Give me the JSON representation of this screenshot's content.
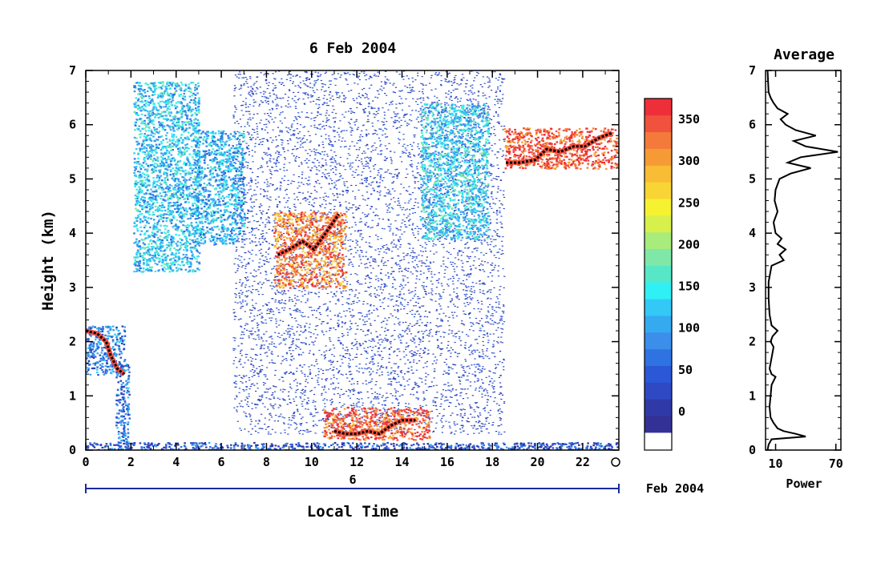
{
  "chart_data": [
    {
      "type": "heatmap",
      "title": "6 Feb 2004",
      "xlabel": "Local Time",
      "ylabel": "Height (km)",
      "xlim": [
        0,
        23.6
      ],
      "ylim": [
        0,
        7
      ],
      "x_ticks": [
        "0",
        "2",
        "4",
        "6",
        "8",
        "10",
        "12",
        "14",
        "16",
        "18",
        "20",
        "22"
      ],
      "y_ticks": [
        "0",
        "1",
        "2",
        "3",
        "4",
        "5",
        "6",
        "7"
      ],
      "date_day_label": "6",
      "date_month_label": "Feb 2004",
      "echo_regions": [
        {
          "name": "surface clutter",
          "x": [
            0,
            23.6
          ],
          "y": [
            0,
            0.15
          ],
          "level": 40
        },
        {
          "name": "early low cloud",
          "x": [
            0,
            1.7
          ],
          "y": [
            1.4,
            2.3
          ],
          "level": 70
        },
        {
          "name": "precip column",
          "x": [
            1.3,
            1.9
          ],
          "y": [
            0,
            1.6
          ],
          "level": 60
        },
        {
          "name": "fall streak A",
          "x": [
            2.1,
            5.0
          ],
          "y": [
            3.3,
            6.8
          ],
          "level": 120
        },
        {
          "name": "fall streak B",
          "x": [
            4.8,
            7.0
          ],
          "y": [
            3.8,
            5.9
          ],
          "level": 110
        },
        {
          "name": "noise field",
          "x": [
            6.5,
            18.5
          ],
          "y": [
            0.3,
            7.0
          ],
          "level": 30
        },
        {
          "name": "midlevel layer",
          "x": [
            8.3,
            11.5
          ],
          "y": [
            3.0,
            4.4
          ],
          "level": 320
        },
        {
          "name": "boundary layer cloud",
          "x": [
            10.5,
            15.2
          ],
          "y": [
            0.2,
            0.8
          ],
          "level": 340
        },
        {
          "name": "upper turbulence",
          "x": [
            14.8,
            17.8
          ],
          "y": [
            3.9,
            6.4
          ],
          "level": 130
        },
        {
          "name": "cirrus base",
          "x": [
            18.5,
            23.5
          ],
          "y": [
            5.2,
            5.95
          ],
          "level": 350
        }
      ],
      "line_tracks": [
        {
          "x": [
            0.0,
            0.5,
            0.9,
            1.1,
            1.4,
            1.7
          ],
          "y": [
            2.2,
            2.15,
            2.0,
            1.75,
            1.5,
            1.4
          ]
        },
        {
          "x": [
            8.5,
            9.0,
            9.6,
            10.1,
            10.7,
            11.2
          ],
          "y": [
            3.6,
            3.7,
            3.85,
            3.7,
            4.05,
            4.35
          ]
        },
        {
          "x": [
            11.0,
            11.5,
            12.0,
            12.5,
            13.0,
            13.5,
            14.0,
            14.6
          ],
          "y": [
            0.35,
            0.3,
            0.3,
            0.35,
            0.3,
            0.45,
            0.55,
            0.55
          ]
        },
        {
          "x": [
            18.6,
            19.2,
            19.9,
            20.4,
            21.0,
            21.6,
            22.1,
            22.7,
            23.3
          ],
          "y": [
            5.3,
            5.3,
            5.35,
            5.55,
            5.5,
            5.6,
            5.6,
            5.75,
            5.85
          ]
        }
      ]
    },
    {
      "type": "colorbar",
      "tick_labels": [
        "0",
        "50",
        "100",
        "150",
        "200",
        "250",
        "300",
        "350"
      ],
      "range": [
        -25,
        375
      ],
      "colors": [
        "#343196",
        "#2f3aa8",
        "#2f48c3",
        "#2b58d6",
        "#2f72e2",
        "#3b8fea",
        "#35aaf0",
        "#33c9f7",
        "#2ff0f4",
        "#56e8c6",
        "#7fe8a8",
        "#a8ec7c",
        "#d7f04c",
        "#f6f231",
        "#f8d534",
        "#f8bc35",
        "#f69a36",
        "#f47a3b",
        "#f1523d",
        "#ee2f3a"
      ]
    },
    {
      "type": "line",
      "title": "Average",
      "xlabel": "Power",
      "x_ticks": [
        "10",
        "70"
      ],
      "y_ticks": [
        "0",
        "1",
        "2",
        "3",
        "4",
        "5",
        "6",
        "7"
      ],
      "ylim": [
        0,
        7
      ],
      "xlim": [
        0,
        75
      ],
      "profile": {
        "height": [
          0.0,
          0.1,
          0.2,
          0.25,
          0.3,
          0.35,
          0.4,
          0.5,
          0.6,
          0.8,
          1.0,
          1.2,
          1.35,
          1.4,
          1.5,
          1.7,
          1.9,
          2.0,
          2.1,
          2.2,
          2.3,
          2.5,
          2.8,
          3.1,
          3.4,
          3.5,
          3.6,
          3.7,
          3.8,
          3.9,
          4.0,
          4.2,
          4.4,
          4.6,
          4.8,
          5.0,
          5.1,
          5.2,
          5.3,
          5.4,
          5.5,
          5.6,
          5.7,
          5.8,
          5.9,
          6.0,
          6.1,
          6.2,
          6.3,
          6.4,
          6.5,
          6.6,
          7.0
        ],
        "power": [
          2,
          3,
          6,
          40,
          30,
          18,
          12,
          8,
          5,
          4,
          5,
          6,
          10,
          6,
          4,
          6,
          8,
          5,
          7,
          12,
          6,
          4,
          3,
          3,
          6,
          18,
          14,
          20,
          12,
          16,
          10,
          8,
          12,
          9,
          10,
          14,
          25,
          45,
          22,
          35,
          72,
          40,
          28,
          50,
          30,
          20,
          15,
          22,
          12,
          8,
          5,
          3,
          2
        ]
      }
    }
  ]
}
